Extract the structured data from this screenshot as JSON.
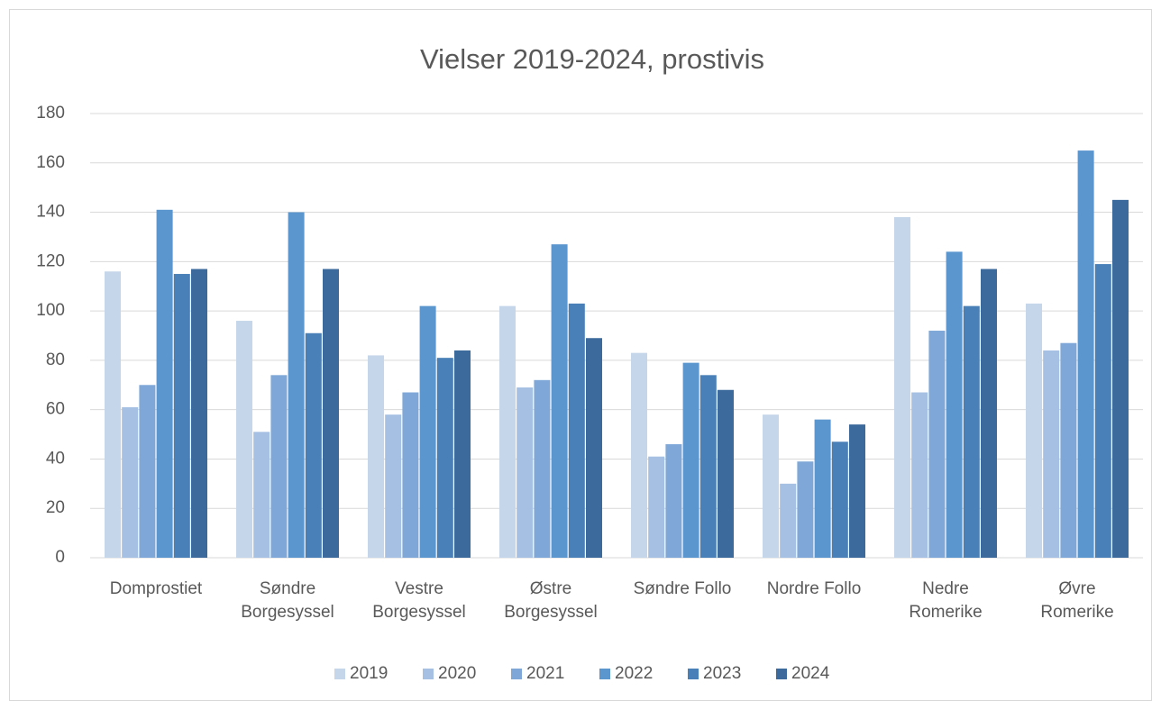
{
  "chart_data": {
    "type": "bar",
    "title": "Vielser 2019-2024, prostivis",
    "categories": [
      "Domprostiet",
      "Søndre Borgesyssel",
      "Vestre Borgesyssel",
      "Østre Borgesyssel",
      "Søndre Follo",
      "Nordre Follo",
      "Nedre Romerike",
      "Øvre Romerike"
    ],
    "series": [
      {
        "name": "2019",
        "color": "#c5d5ea",
        "values": [
          116,
          96,
          82,
          102,
          83,
          58,
          138,
          103
        ]
      },
      {
        "name": "2020",
        "color": "#a5c0e3",
        "values": [
          61,
          51,
          58,
          69,
          41,
          30,
          67,
          84
        ]
      },
      {
        "name": "2021",
        "color": "#7fa8d8",
        "values": [
          70,
          74,
          67,
          72,
          46,
          39,
          92,
          87
        ]
      },
      {
        "name": "2022",
        "color": "#5b96cf",
        "values": [
          141,
          140,
          102,
          127,
          79,
          56,
          124,
          165
        ]
      },
      {
        "name": "2023",
        "color": "#4a80b8",
        "values": [
          115,
          91,
          81,
          103,
          74,
          47,
          102,
          119
        ]
      },
      {
        "name": "2024",
        "color": "#3c6a9d",
        "values": [
          117,
          117,
          84,
          89,
          68,
          54,
          117,
          145
        ]
      }
    ],
    "ylim": [
      0,
      180
    ],
    "yticks": [
      0,
      20,
      40,
      60,
      80,
      100,
      120,
      140,
      160,
      180
    ],
    "grid": true,
    "legend": "bottom"
  }
}
